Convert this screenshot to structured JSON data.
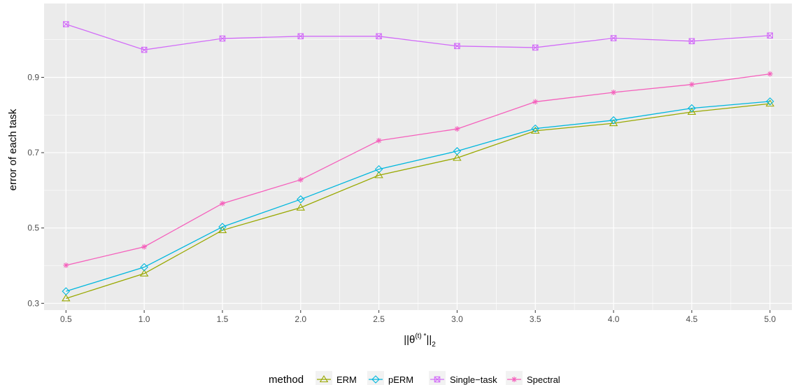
{
  "chart_data": {
    "type": "line",
    "x": [
      0.5,
      1.0,
      1.5,
      2.0,
      2.5,
      3.0,
      3.5,
      4.0,
      4.5,
      5.0
    ],
    "x_tick_labels": [
      "0.5",
      "1.0",
      "1.5",
      "2.0",
      "2.5",
      "3.0",
      "3.5",
      "4.0",
      "4.5",
      "5.0"
    ],
    "y_ticks": [
      0.3,
      0.5,
      0.7,
      0.9
    ],
    "y_tick_labels": [
      "0.3",
      "0.5",
      "0.7",
      "0.9"
    ],
    "xlim": [
      0.36,
      5.14
    ],
    "ylim": [
      0.282,
      1.096
    ],
    "ylabel": "error of each task",
    "xlabel": {
      "open": "||θ",
      "superscript": "(t) *",
      "close": "||",
      "subscript": "2"
    },
    "grid": true,
    "legend_position": "bottom",
    "legend_title": "method",
    "series": [
      {
        "name": "ERM",
        "color": "#99a800",
        "marker": "triangle",
        "values": [
          0.313,
          0.379,
          0.494,
          0.554,
          0.64,
          0.686,
          0.758,
          0.778,
          0.808,
          0.83
        ]
      },
      {
        "name": "pERM",
        "color": "#00b7de",
        "marker": "diamond",
        "values": [
          0.332,
          0.396,
          0.503,
          0.576,
          0.656,
          0.704,
          0.764,
          0.786,
          0.818,
          0.836
        ]
      },
      {
        "name": "Single−task",
        "color": "#d26cf8",
        "marker": "square-cross",
        "values": [
          1.041,
          0.973,
          1.003,
          1.009,
          1.009,
          0.983,
          0.979,
          1.004,
          0.996,
          1.011
        ]
      },
      {
        "name": "Spectral",
        "color": "#f560bc",
        "marker": "asterisk",
        "values": [
          0.401,
          0.45,
          0.565,
          0.628,
          0.732,
          0.763,
          0.835,
          0.86,
          0.881,
          0.909
        ]
      }
    ]
  }
}
